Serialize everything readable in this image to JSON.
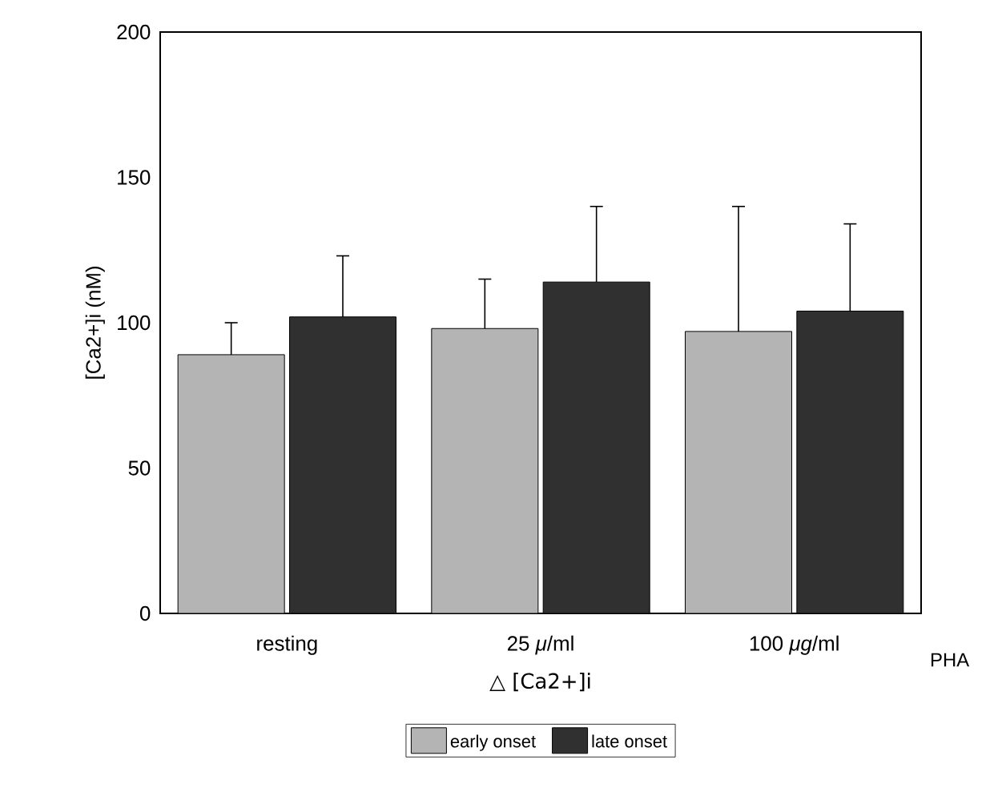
{
  "chart_data": {
    "type": "bar",
    "ylabel": "[Ca2+]i  (nM)",
    "xlabel": "△ [Ca2+]i",
    "categories": [
      "resting",
      "25 *μ*/ml",
      "100 *μg*/ml"
    ],
    "series": [
      {
        "name": "early onset",
        "color": "#b4b4b4",
        "values": [
          89,
          98,
          97
        ],
        "errors": [
          [
            89,
            100
          ],
          [
            98,
            115
          ],
          [
            97,
            140
          ]
        ]
      },
      {
        "name": "late onset",
        "color": "#303030",
        "values": [
          102,
          114,
          104
        ],
        "errors": [
          [
            102,
            123
          ],
          [
            114,
            140
          ],
          [
            104,
            134
          ]
        ]
      }
    ],
    "ylim": [
      0,
      200
    ],
    "yticks": [
      0,
      50,
      100,
      150,
      200
    ],
    "grid": false,
    "legend": "bottom",
    "annotations": [
      "PHA"
    ]
  }
}
